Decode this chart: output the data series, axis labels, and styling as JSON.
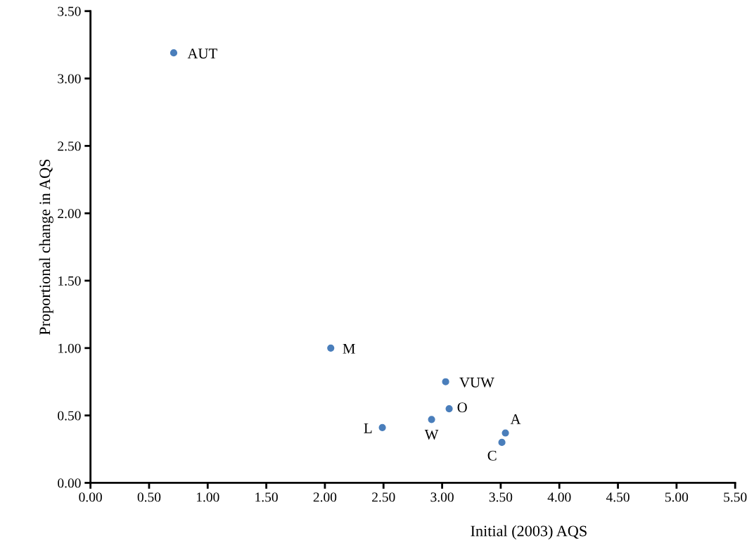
{
  "chart_data": {
    "type": "scatter",
    "xlabel": "Initial (2003) AQS",
    "ylabel": "Proportional change in AQS",
    "x": [
      0.71,
      2.05,
      3.03,
      3.06,
      2.91,
      2.49,
      3.54,
      3.51
    ],
    "values": [
      3.19,
      1.0,
      0.75,
      0.55,
      0.47,
      0.41,
      0.37,
      0.3
    ],
    "color": "#4a7ebb",
    "marker": "circle",
    "grid": false,
    "legend": false,
    "xlim": [
      0,
      5.5
    ],
    "xticks": [
      {
        "value": 0,
        "label": "0.00"
      },
      {
        "value": 0.5,
        "label": "0.50"
      },
      {
        "value": 1,
        "label": "1.00"
      },
      {
        "value": 1.5,
        "label": "1.50"
      },
      {
        "value": 2,
        "label": "2.00"
      },
      {
        "value": 2.5,
        "label": "2.50"
      },
      {
        "value": 3,
        "label": "3.00"
      },
      {
        "value": 3.5,
        "label": "3.50"
      },
      {
        "value": 4,
        "label": "4.00"
      },
      {
        "value": 4.5,
        "label": "4.50"
      },
      {
        "value": 5,
        "label": "5.00"
      },
      {
        "value": 5.5,
        "label": "5.50"
      }
    ],
    "ylim": [
      0,
      3.5
    ],
    "yticks": [
      {
        "value": 0,
        "label": "0.00"
      },
      {
        "value": 0.5,
        "label": "0.50"
      },
      {
        "value": 1,
        "label": "1.00"
      },
      {
        "value": 1.5,
        "label": "1.50"
      },
      {
        "value": 2,
        "label": "2.00"
      },
      {
        "value": 2.5,
        "label": "2.50"
      },
      {
        "value": 3,
        "label": "3.00"
      },
      {
        "value": 3.5,
        "label": "3.50"
      }
    ],
    "annotations": [
      {
        "text": "AUT",
        "x": 0.71,
        "y": 3.19
      },
      {
        "text": "M",
        "x": 2.05,
        "y": 1.0
      },
      {
        "text": "VUW",
        "x": 3.03,
        "y": 0.75
      },
      {
        "text": "O",
        "x": 3.06,
        "y": 0.55
      },
      {
        "text": "W",
        "x": 2.91,
        "y": 0.47
      },
      {
        "text": "L",
        "x": 2.49,
        "y": 0.41
      },
      {
        "text": "A",
        "x": 3.54,
        "y": 0.37
      },
      {
        "text": "C",
        "x": 3.51,
        "y": 0.3
      }
    ]
  }
}
